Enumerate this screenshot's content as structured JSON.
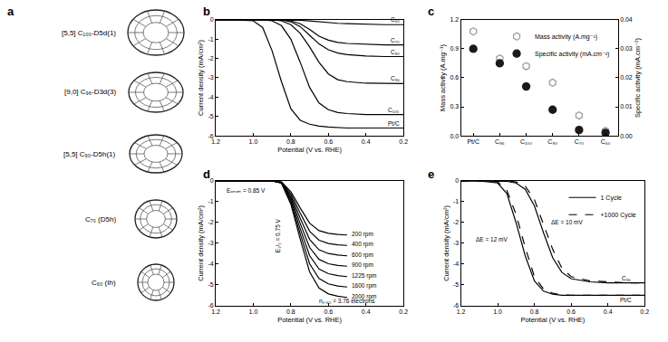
{
  "structures": {
    "title": "a",
    "labels": [
      "[5,5] C₁₀₀-D5d(1)",
      "[9,0] C₉₆-D3d(3)",
      "[5,5] C₉₀-D5h(1)",
      "C₇₀ (D5h)",
      "C₆₀ (Ih)"
    ]
  },
  "chart_data": [
    {
      "type": "line",
      "title": "b",
      "x_label": "Potential (V vs. RHE)",
      "y_label": "Current density (mA/cm²)",
      "xlim": [
        1.2,
        0.2
      ],
      "xticks": [
        1.2,
        {
          "value": 1,
          "label": "1.0"
        },
        0.8,
        0.6,
        0.4,
        0.2
      ],
      "ylim": [
        -6,
        0
      ],
      "yticks": [
        0,
        -1,
        -2,
        -3,
        -4,
        -5,
        -6
      ],
      "x": [
        1.2,
        1.1,
        1.0,
        0.95,
        0.9,
        0.85,
        0.8,
        0.75,
        0.7,
        0.65,
        0.6,
        0.55,
        0.5,
        0.4,
        0.3,
        0.2
      ],
      "series": [
        {
          "name": "C₆₀",
          "color": "#000000",
          "values": [
            0,
            0,
            0,
            0,
            0,
            0,
            0,
            -0.02,
            -0.06,
            -0.11,
            -0.15,
            -0.18,
            -0.2,
            -0.23,
            -0.25,
            -0.25
          ]
        },
        {
          "name": "C₇₀",
          "color": "#000000",
          "values": [
            0,
            0,
            0,
            0,
            0,
            0,
            -0.05,
            -0.2,
            -0.5,
            -0.85,
            -1.05,
            -1.17,
            -1.22,
            -1.27,
            -1.3,
            -1.3
          ]
        },
        {
          "name": "C₉₀",
          "color": "#000000",
          "values": [
            0,
            0,
            0,
            0,
            0,
            0,
            -0.1,
            -0.35,
            -0.8,
            -1.25,
            -1.55,
            -1.72,
            -1.8,
            -1.87,
            -1.9,
            -1.9
          ]
        },
        {
          "name": "C₉₆",
          "color": "#000000",
          "values": [
            0,
            0,
            0,
            0,
            0,
            -0.05,
            -0.25,
            -0.7,
            -1.4,
            -2.2,
            -2.8,
            -3.1,
            -3.2,
            -3.28,
            -3.3,
            -3.3
          ]
        },
        {
          "name": "C₁₀₀",
          "color": "#000000",
          "values": [
            0,
            0,
            0,
            0,
            -0.05,
            -0.3,
            -1.0,
            -2.2,
            -3.5,
            -4.3,
            -4.65,
            -4.8,
            -4.85,
            -4.9,
            -4.9,
            -4.9
          ]
        },
        {
          "name": "Pt/C",
          "color": "#000000",
          "values": [
            0,
            0,
            -0.05,
            -0.4,
            -1.6,
            -3.2,
            -4.6,
            -5.2,
            -5.4,
            -5.5,
            -5.55,
            -5.58,
            -5.6,
            -5.6,
            -5.6,
            -5.6
          ]
        }
      ]
    },
    {
      "type": "scatter",
      "title": "c",
      "y_label": "Mass activity (A.mg⁻¹)",
      "y2_label": "Specific activity (mA.cm⁻²)",
      "categories": [
        "Pt/C",
        "C₉₆",
        "C₁₀₀",
        "C₉₀",
        "C₇₀",
        "C₆₀"
      ],
      "ylim": [
        0,
        1.2
      ],
      "yticks": [
        {
          "value": 0,
          "label": "0.0"
        },
        0.3,
        0.6,
        0.9,
        1.2
      ],
      "y2lim": [
        0,
        0.04
      ],
      "y2ticks": [
        {
          "value": 0,
          "label": "0.00"
        },
        0.01,
        0.02,
        0.03,
        0.04
      ],
      "legend": "top right",
      "series": [
        {
          "name": "Mass activity (A.mg⁻¹)",
          "color": "#9e9e9e",
          "marker": "hexagon-open",
          "values": [
            1.08,
            0.8,
            0.72,
            0.55,
            0.21,
            0.05
          ]
        },
        {
          "name": "Specific activity (mA.cm⁻²)",
          "color": "#1a1a1a",
          "marker": "circle",
          "axis": "y2",
          "values": [
            0.03,
            0.025,
            0.017,
            0.009,
            0.002,
            0.001
          ]
        }
      ]
    },
    {
      "type": "line",
      "title": "d",
      "x_label": "Potential (V vs. RHE)",
      "y_label": "Current density (mA/cm²)",
      "xlim": [
        1.2,
        0.2
      ],
      "xticks": [
        1.2,
        {
          "value": 1,
          "label": "1.0"
        },
        0.8,
        0.6,
        0.4,
        0.2
      ],
      "ylim": [
        -6,
        0
      ],
      "yticks": [
        0,
        -1,
        -2,
        -3,
        -4,
        -5,
        -6
      ],
      "annotations": [
        "Eₒₙₛₑₜ = 0.85 V",
        "E₁/₂ = 0.75 V",
        "n₀.₆₅ = 3.76 electrons"
      ],
      "x": [
        1.2,
        1.1,
        1.0,
        0.95,
        0.9,
        0.85,
        0.8,
        0.75,
        0.7,
        0.65,
        0.6,
        0.55,
        0.5
      ],
      "series": [
        {
          "name": "200 rpm",
          "color": "#000000",
          "values": [
            0,
            0,
            0,
            0,
            0,
            -0.05,
            -0.52,
            -1.3,
            -2.03,
            -2.39,
            -2.52,
            -2.57,
            -2.6
          ]
        },
        {
          "name": "400 rpm",
          "color": "#000000",
          "values": [
            0,
            0,
            0,
            0,
            0,
            -0.06,
            -0.62,
            -1.55,
            -2.42,
            -2.85,
            -3.01,
            -3.07,
            -3.1
          ]
        },
        {
          "name": "600 rpm",
          "color": "#000000",
          "values": [
            0,
            0,
            0,
            0,
            0,
            -0.07,
            -0.72,
            -1.8,
            -2.81,
            -3.31,
            -3.49,
            -3.56,
            -3.6
          ]
        },
        {
          "name": "900 rpm",
          "color": "#000000",
          "values": [
            0,
            0,
            0,
            0,
            0,
            -0.08,
            -0.82,
            -2.05,
            -3.2,
            -3.77,
            -3.98,
            -4.06,
            -4.1
          ]
        },
        {
          "name": "1225 rpm",
          "color": "#000000",
          "values": [
            0,
            0,
            0,
            0,
            0,
            -0.09,
            -0.92,
            -2.3,
            -3.59,
            -4.23,
            -4.46,
            -4.55,
            -4.6
          ]
        },
        {
          "name": "1600 rpm",
          "color": "#000000",
          "values": [
            0,
            0,
            0,
            0,
            0,
            -0.1,
            -1.02,
            -2.55,
            -3.98,
            -4.69,
            -4.95,
            -5.05,
            -5.1
          ]
        },
        {
          "name": "2000 rpm",
          "color": "#000000",
          "values": [
            0,
            0,
            0,
            0,
            0,
            -0.11,
            -1.12,
            -2.8,
            -4.37,
            -5.15,
            -5.43,
            -5.54,
            -5.6
          ]
        }
      ]
    },
    {
      "type": "line",
      "title": "e",
      "x_label": "Potential (V vs. RHE)",
      "y_label": "Current density (mA/cm²)",
      "xlim": [
        1.2,
        0.2
      ],
      "xticks": [
        1.2,
        {
          "value": 1,
          "label": "1.0"
        },
        0.8,
        0.6,
        0.4,
        0.2
      ],
      "ylim": [
        -6,
        0
      ],
      "yticks": [
        0,
        -1,
        -2,
        -3,
        -4,
        -5,
        -6
      ],
      "legend": "top right",
      "annotations": [
        "ΔE = 12 mV",
        "ΔE = 10 mV",
        "C₉₆",
        "Pt/C"
      ],
      "x": [
        1.2,
        1.1,
        1.0,
        0.95,
        0.9,
        0.85,
        0.8,
        0.75,
        0.7,
        0.65,
        0.6,
        0.5,
        0.4,
        0.3,
        0.2
      ],
      "series": [
        {
          "name": "1 Cycle",
          "color": "#000000",
          "line_style": "solid",
          "values": [
            0,
            0,
            -0.1,
            -0.6,
            -2.0,
            -3.6,
            -4.8,
            -5.3,
            -5.45,
            -5.5,
            -5.5,
            -5.5,
            -5.5,
            -5.5,
            -5.5
          ]
        },
        {
          "name": "+1000 Cycle",
          "color": "#000000",
          "line_style": "dash",
          "values": [
            0,
            0,
            -0.05,
            -0.45,
            -1.6,
            -3.2,
            -4.6,
            -5.2,
            -5.4,
            -5.48,
            -5.5,
            -5.5,
            -5.5,
            -5.5,
            -5.5
          ]
        },
        {
          "name": "1 Cycle",
          "color": "#000000",
          "line_style": "solid",
          "values": [
            0,
            0,
            0,
            -0.02,
            -0.1,
            -0.4,
            -1.2,
            -2.5,
            -3.7,
            -4.4,
            -4.7,
            -4.85,
            -4.9,
            -4.9,
            -4.9
          ]
        },
        {
          "name": "+1000 Cycle",
          "color": "#000000",
          "line_style": "dash",
          "values": [
            0,
            0,
            0,
            0,
            -0.05,
            -0.25,
            -0.9,
            -2.1,
            -3.3,
            -4.2,
            -4.6,
            -4.8,
            -4.85,
            -4.9,
            -4.9
          ]
        }
      ]
    }
  ]
}
